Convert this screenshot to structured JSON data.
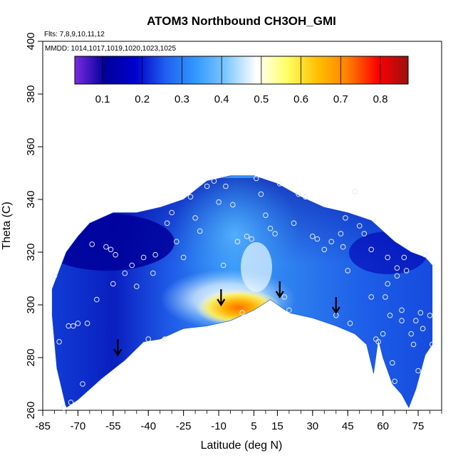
{
  "chart_data": {
    "type": "heatmap",
    "title": "ATOM3 Northbound CH3OH_GMI",
    "subtitle_flights": "Flts: 7,8,9,10,11,12",
    "subtitle_dates": "MMDD: 1014,1017,1019,1020,1023,1025",
    "xlabel": "Latitude (deg N)",
    "ylabel": "Theta (C)",
    "xlim": [
      -85,
      85
    ],
    "ylim": [
      260,
      400
    ],
    "x_ticks": [
      -85,
      -70,
      -55,
      -40,
      -25,
      -10,
      5,
      15,
      30,
      45,
      60,
      75
    ],
    "y_ticks": [
      260,
      280,
      300,
      320,
      340,
      360,
      380,
      400
    ],
    "colorbar": {
      "range": [
        0.03,
        0.87
      ],
      "ticks": [
        0.1,
        0.2,
        0.3,
        0.4,
        0.5,
        0.6,
        0.7,
        0.8
      ],
      "colors": [
        "#7a2be2",
        "#00009a",
        "#0000cd",
        "#2060f0",
        "#3399ff",
        "#80c8ff",
        "#ffffff",
        "#ffff66",
        "#ffc000",
        "#ff8000",
        "#ff0000",
        "#9b1010"
      ]
    },
    "field_upper_boundary": [
      [
        -81,
        306
      ],
      [
        -75,
        320
      ],
      [
        -70,
        326
      ],
      [
        -65,
        331
      ],
      [
        -55,
        335
      ],
      [
        -45,
        335
      ],
      [
        -35,
        337
      ],
      [
        -25,
        340
      ],
      [
        -15,
        347
      ],
      [
        -5,
        349
      ],
      [
        5,
        349
      ],
      [
        15,
        346
      ],
      [
        25,
        341
      ],
      [
        35,
        337
      ],
      [
        45,
        335
      ],
      [
        55,
        332
      ],
      [
        65,
        324
      ],
      [
        72,
        320
      ],
      [
        78,
        318
      ],
      [
        81,
        315
      ]
    ],
    "field_lower_boundary": [
      [
        -81,
        296
      ],
      [
        -79,
        276
      ],
      [
        -75,
        261
      ],
      [
        -70,
        264
      ],
      [
        -60,
        272
      ],
      [
        -50,
        279
      ],
      [
        -42,
        286
      ],
      [
        -35,
        287
      ],
      [
        -25,
        291
      ],
      [
        -15,
        292
      ],
      [
        -5,
        294
      ],
      [
        5,
        298
      ],
      [
        12,
        302
      ],
      [
        20,
        297
      ],
      [
        30,
        295
      ],
      [
        40,
        292
      ],
      [
        48,
        289
      ],
      [
        53,
        285
      ],
      [
        56,
        274
      ],
      [
        58,
        287
      ],
      [
        60,
        280
      ],
      [
        64,
        270
      ],
      [
        68,
        266
      ],
      [
        71,
        261
      ],
      [
        74,
        268
      ],
      [
        78,
        281
      ],
      [
        81,
        285
      ]
    ],
    "high_region": {
      "center": [
        0,
        300
      ],
      "peak_value": 0.6,
      "note_value": 0.5
    },
    "arrows": [
      [
        -53,
        281
      ],
      [
        -9,
        300
      ],
      [
        16,
        303
      ],
      [
        40,
        297
      ]
    ],
    "points": [
      [
        -80,
        311
      ],
      [
        -78,
        286
      ],
      [
        -76,
        261
      ],
      [
        -74,
        292
      ],
      [
        -73,
        263
      ],
      [
        -72,
        292
      ],
      [
        -70,
        293
      ],
      [
        -68,
        270
      ],
      [
        -66,
        293
      ],
      [
        -64,
        323
      ],
      [
        -62,
        302
      ],
      [
        -58,
        322
      ],
      [
        -56,
        321
      ],
      [
        -55,
        308
      ],
      [
        -54,
        319
      ],
      [
        -50,
        312
      ],
      [
        -47,
        315
      ],
      [
        -45,
        307
      ],
      [
        -42,
        318
      ],
      [
        -40,
        287
      ],
      [
        -38,
        312
      ],
      [
        -37,
        319
      ],
      [
        -33,
        287
      ],
      [
        -32,
        331
      ],
      [
        -30,
        335
      ],
      [
        -28,
        324
      ],
      [
        -25,
        318
      ],
      [
        -22,
        341
      ],
      [
        -20,
        333
      ],
      [
        -18,
        328
      ],
      [
        -15,
        345
      ],
      [
        -12,
        347
      ],
      [
        -10,
        339
      ],
      [
        -8,
        315
      ],
      [
        -7,
        345
      ],
      [
        -4,
        338
      ],
      [
        -2,
        324
      ],
      [
        0,
        297
      ],
      [
        2,
        326
      ],
      [
        4,
        325
      ],
      [
        6,
        348
      ],
      [
        8,
        342
      ],
      [
        10,
        334
      ],
      [
        12,
        329
      ],
      [
        14,
        327
      ],
      [
        16,
        346
      ],
      [
        18,
        303
      ],
      [
        20,
        298
      ],
      [
        22,
        331
      ],
      [
        24,
        342
      ],
      [
        27,
        341
      ],
      [
        30,
        326
      ],
      [
        32,
        325
      ],
      [
        35,
        321
      ],
      [
        38,
        324
      ],
      [
        40,
        296
      ],
      [
        42,
        327
      ],
      [
        43,
        322
      ],
      [
        44,
        333
      ],
      [
        45,
        313
      ],
      [
        46,
        293
      ],
      [
        48,
        343
      ],
      [
        50,
        330
      ],
      [
        52,
        327
      ],
      [
        55,
        321
      ],
      [
        55,
        303
      ],
      [
        57,
        287
      ],
      [
        58,
        286
      ],
      [
        60,
        289
      ],
      [
        61,
        303
      ],
      [
        62,
        318
      ],
      [
        62,
        308
      ],
      [
        63,
        296
      ],
      [
        64,
        278
      ],
      [
        65,
        271
      ],
      [
        66,
        314
      ],
      [
        66,
        311
      ],
      [
        68,
        298
      ],
      [
        68,
        294
      ],
      [
        69,
        318
      ],
      [
        70,
        313
      ],
      [
        72,
        289
      ],
      [
        73,
        285
      ],
      [
        74,
        294
      ],
      [
        75,
        275
      ],
      [
        76,
        297
      ],
      [
        77,
        291
      ],
      [
        78,
        319
      ],
      [
        80,
        296
      ],
      [
        81,
        285
      ]
    ]
  }
}
